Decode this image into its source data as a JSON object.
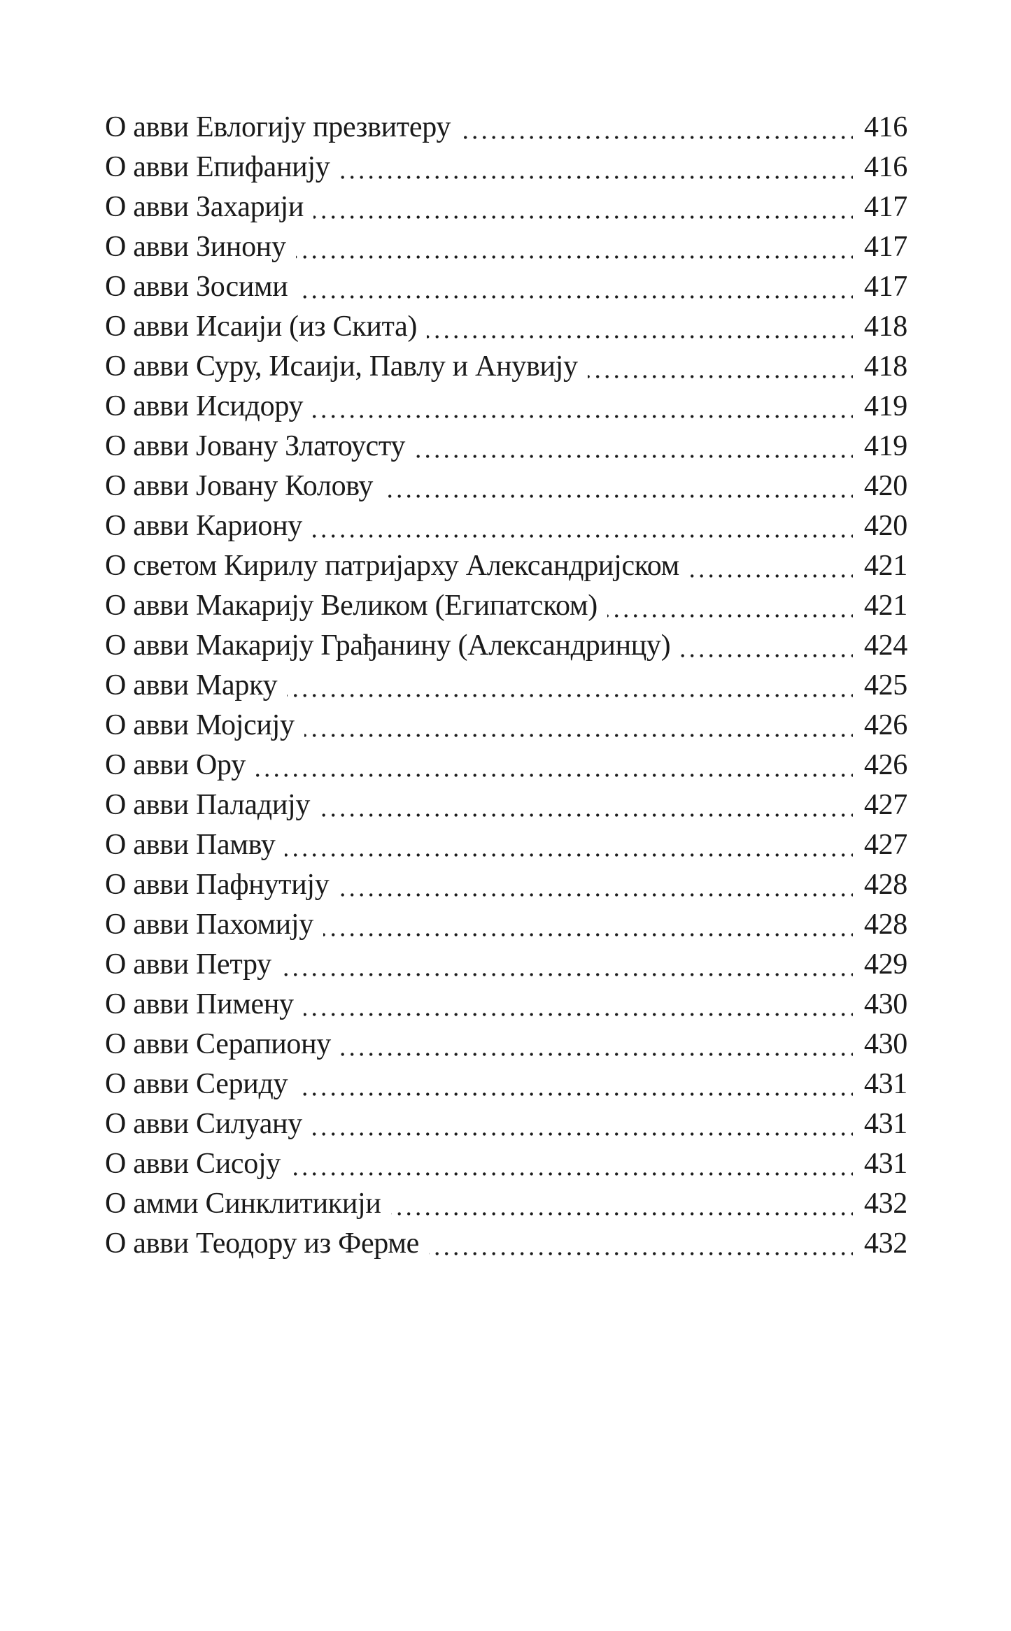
{
  "page": {
    "background_color": "#ffffff",
    "text_color": "#1a1a1a",
    "language": "Serbian (Cyrillic)",
    "kind": "book table of contents page"
  },
  "toc": {
    "entries": [
      {
        "title": "О авви Евлогију презвитеру",
        "page": "416"
      },
      {
        "title": "О авви Епифанију",
        "page": "416"
      },
      {
        "title": "О авви Захарији",
        "page": "417"
      },
      {
        "title": "О авви Зинону",
        "page": "417"
      },
      {
        "title": "О авви Зосими",
        "page": "417"
      },
      {
        "title": "О авви Исаији (из Скита)",
        "page": "418"
      },
      {
        "title": "О авви Суру, Исаији, Павлу и Анувију",
        "page": "418"
      },
      {
        "title": "О авви Исидору",
        "page": "419"
      },
      {
        "title": "О авви Јовану Златоусту",
        "page": "419"
      },
      {
        "title": "О авви Јовану Колову",
        "page": "420"
      },
      {
        "title": "О авви Кариону",
        "page": "420"
      },
      {
        "title": "О светом Кирилу патријарху Александријском",
        "page": "421"
      },
      {
        "title": "О авви Макарију Великом (Египатском)",
        "page": "421"
      },
      {
        "title": "О авви Макарију Грађанину (Александринцу)",
        "page": "424"
      },
      {
        "title": "О авви Марку",
        "page": "425"
      },
      {
        "title": "О авви Мојсију",
        "page": "426"
      },
      {
        "title": "О авви Ору",
        "page": "426"
      },
      {
        "title": "О авви Паладију",
        "page": "427"
      },
      {
        "title": "О авви Памву",
        "page": "427"
      },
      {
        "title": "О авви Пафнутију",
        "page": "428"
      },
      {
        "title": "О авви Пахомију",
        "page": "428"
      },
      {
        "title": "О авви Петру",
        "page": "429"
      },
      {
        "title": "О авви Пимену",
        "page": "430"
      },
      {
        "title": "О авви Серапиону",
        "page": "430"
      },
      {
        "title": "О авви Сериду",
        "page": "431"
      },
      {
        "title": "О авви Силуану",
        "page": "431"
      },
      {
        "title": "О авви Сисоју",
        "page": "431"
      },
      {
        "title": "О амми Синклитикији",
        "page": "432"
      },
      {
        "title": "О авви Теодору из Ферме",
        "page": "432"
      }
    ]
  }
}
